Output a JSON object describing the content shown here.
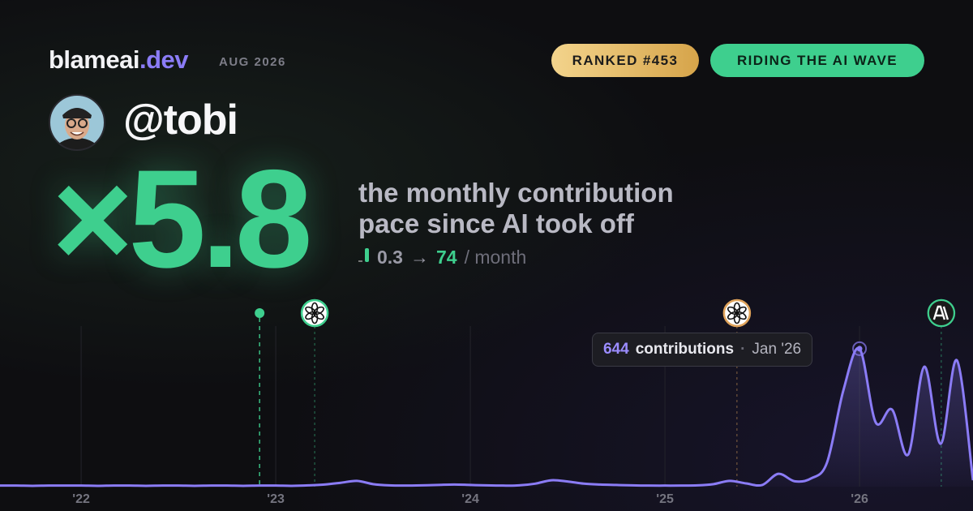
{
  "header": {
    "brand": "blameai",
    "brand_suffix": ".dev",
    "date": "AUG 2026",
    "badges": [
      "RANKED #453",
      "RIDING THE AI WAVE"
    ]
  },
  "profile": {
    "handle": "@tobi",
    "multiplier": "×5.8",
    "description": [
      "the monthly contribution",
      "pace since AI took off"
    ],
    "rate_from": 0.3,
    "arrow": "→",
    "rate_to": 74,
    "rate_unit": "/ month"
  },
  "chart_data": {
    "type": "area",
    "x": [
      2021.583,
      2021.667,
      2021.75,
      2021.833,
      2021.917,
      2022.0,
      2022.083,
      2022.167,
      2022.25,
      2022.333,
      2022.417,
      2022.5,
      2022.583,
      2022.667,
      2022.75,
      2022.833,
      2022.917,
      2023.0,
      2023.083,
      2023.167,
      2023.25,
      2023.333,
      2023.417,
      2023.5,
      2023.583,
      2023.667,
      2023.75,
      2023.833,
      2023.917,
      2024.0,
      2024.083,
      2024.167,
      2024.25,
      2024.333,
      2024.417,
      2024.5,
      2024.583,
      2024.667,
      2024.75,
      2024.833,
      2024.917,
      2025.0,
      2025.083,
      2025.167,
      2025.25,
      2025.333,
      2025.417,
      2025.5,
      2025.583,
      2025.667,
      2025.75,
      2025.833,
      2025.917,
      2026.0,
      2026.083,
      2026.167,
      2026.25,
      2026.333,
      2026.417,
      2026.5,
      2026.583
    ],
    "series": [
      {
        "name": "contributions",
        "color": "#8b7cf6",
        "values": [
          5,
          5,
          4,
          5,
          5,
          5,
          4,
          5,
          5,
          4,
          5,
          5,
          4,
          5,
          5,
          4,
          5,
          5,
          4,
          6,
          10,
          18,
          27,
          12,
          6,
          5,
          6,
          8,
          10,
          8,
          6,
          5,
          6,
          14,
          30,
          24,
          14,
          10,
          8,
          6,
          5,
          5,
          5,
          6,
          12,
          27,
          15,
          8,
          60,
          25,
          38,
          113,
          450,
          644,
          300,
          360,
          150,
          560,
          200,
          590,
          30
        ]
      }
    ],
    "xlim": [
      2021.583,
      2026.583
    ],
    "ylim": [
      0,
      833
    ],
    "xticks": [
      {
        "value": 2022,
        "label": "'22"
      },
      {
        "value": 2023,
        "label": "'23"
      },
      {
        "value": 2024,
        "label": "'24"
      },
      {
        "value": 2025,
        "label": "'25"
      },
      {
        "value": 2026,
        "label": "'26"
      }
    ],
    "grid": true,
    "events": [
      {
        "x": 2022.917,
        "icon": "dot",
        "color": "#3ecf8e"
      },
      {
        "x": 2023.2,
        "icon": "openai",
        "color": "#3ecf8e"
      },
      {
        "x": 2025.37,
        "icon": "openai",
        "color": "#e0a35a"
      },
      {
        "x": 2026.42,
        "icon": "anthropic",
        "color": "#3ecf8e"
      }
    ],
    "tooltip": {
      "index": 53,
      "label": "contributions",
      "date": "Jan '26"
    }
  }
}
